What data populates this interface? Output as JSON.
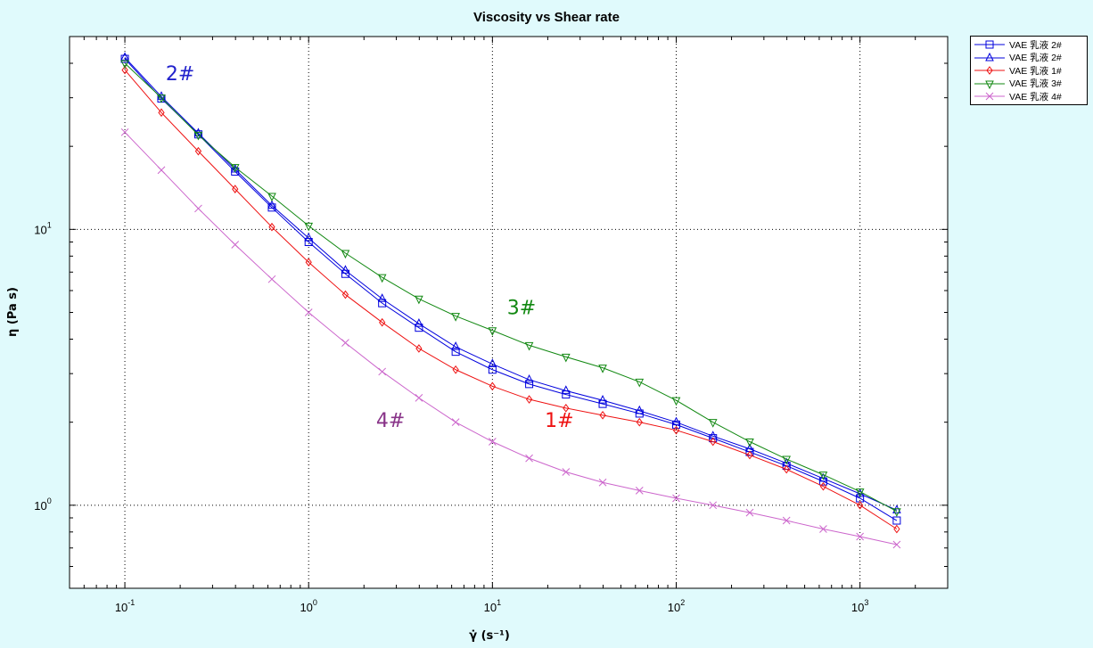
{
  "chart_data": {
    "type": "line",
    "title": "Viscosity vs Shear rate",
    "xlabel": "γ̇ (s⁻¹)",
    "ylabel": "η (Pa s)",
    "xscale": "log",
    "yscale": "log",
    "xlim": [
      0.05,
      3000
    ],
    "ylim": [
      0.5,
      50
    ],
    "x_ticks": [
      {
        "value": 0.1,
        "label_base": "10",
        "label_exp": "-1"
      },
      {
        "value": 1,
        "label_base": "10",
        "label_exp": "0"
      },
      {
        "value": 10,
        "label_base": "10",
        "label_exp": "1"
      },
      {
        "value": 100,
        "label_base": "10",
        "label_exp": "2"
      },
      {
        "value": 1000,
        "label_base": "10",
        "label_exp": "3"
      }
    ],
    "y_ticks": [
      {
        "value": 1,
        "label_base": "10",
        "label_exp": "0"
      },
      {
        "value": 10,
        "label_base": "10",
        "label_exp": "1"
      }
    ],
    "grid": true,
    "legend_position": "outside-top-right",
    "x": [
      0.1,
      0.158,
      0.251,
      0.398,
      0.631,
      1,
      1.585,
      2.512,
      3.981,
      6.31,
      10,
      15.85,
      25.12,
      39.81,
      63.1,
      100,
      158.5,
      251.2,
      398.1,
      631,
      1000,
      1585
    ],
    "series": [
      {
        "name": "VAE 乳液 2#",
        "color": "#0000dd",
        "marker": "square",
        "values": [
          41.5,
          29.8,
          22.1,
          16.2,
          12.0,
          9.0,
          6.9,
          5.4,
          4.4,
          3.6,
          3.1,
          2.75,
          2.52,
          2.33,
          2.15,
          1.96,
          1.75,
          1.56,
          1.39,
          1.22,
          1.06,
          0.88
        ]
      },
      {
        "name": "VAE 乳液 2#",
        "color": "#0000dd",
        "marker": "triangle-up",
        "values": [
          42.0,
          30.3,
          22.3,
          16.5,
          12.2,
          9.3,
          7.1,
          5.6,
          4.55,
          3.75,
          3.25,
          2.85,
          2.6,
          2.4,
          2.2,
          2.0,
          1.78,
          1.6,
          1.42,
          1.25,
          1.1,
          0.96
        ]
      },
      {
        "name": "VAE 乳液 1#",
        "color": "#ee1111",
        "marker": "diamond",
        "values": [
          37.8,
          26.5,
          19.2,
          14.0,
          10.2,
          7.6,
          5.8,
          4.6,
          3.7,
          3.1,
          2.7,
          2.42,
          2.25,
          2.12,
          2.0,
          1.87,
          1.7,
          1.52,
          1.35,
          1.17,
          1.0,
          0.82
        ]
      },
      {
        "name": "VAE 乳液 3#",
        "color": "#118811",
        "marker": "triangle-down",
        "values": [
          40.0,
          30.0,
          22.0,
          16.8,
          13.2,
          10.3,
          8.2,
          6.7,
          5.6,
          4.85,
          4.3,
          3.8,
          3.45,
          3.15,
          2.8,
          2.4,
          2.0,
          1.7,
          1.47,
          1.29,
          1.12,
          0.95
        ]
      },
      {
        "name": "VAE 乳液 4#",
        "color": "#cc66cc",
        "marker": "x",
        "values": [
          22.5,
          16.4,
          11.9,
          8.8,
          6.6,
          5.0,
          3.88,
          3.05,
          2.45,
          2.0,
          1.7,
          1.48,
          1.32,
          1.21,
          1.13,
          1.06,
          1.0,
          0.94,
          0.88,
          0.82,
          0.77,
          0.72
        ]
      }
    ],
    "annotations": [
      {
        "text": "2#",
        "x": 0.2,
        "y": 34.7,
        "color": "#2222cc"
      },
      {
        "text": "3#",
        "x": 14.4,
        "y": 4.93,
        "color": "#118811"
      },
      {
        "text": "1#",
        "x": 23.1,
        "y": 1.92,
        "color": "#ee1111"
      },
      {
        "text": "4#",
        "x": 2.79,
        "y": 1.92,
        "color": "#883388"
      }
    ]
  }
}
